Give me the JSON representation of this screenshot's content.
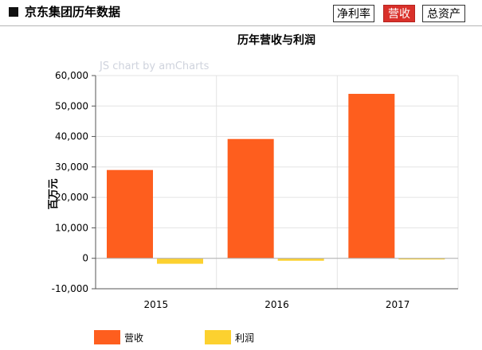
{
  "header": {
    "title": "京东集团历年数据",
    "tabs": [
      {
        "label": "净利率",
        "active": false
      },
      {
        "label": "营收",
        "active": true
      },
      {
        "label": "总资产",
        "active": false
      }
    ]
  },
  "watermark": "JS chart by amCharts",
  "chart_data": {
    "type": "bar",
    "title": "历年营收与利润",
    "ylabel": "百万元",
    "xlabel": "",
    "categories": [
      "2015",
      "2016",
      "2017"
    ],
    "series": [
      {
        "name": "营收",
        "color": "#fe5e1e",
        "values": [
          28996,
          39173,
          54000
        ]
      },
      {
        "name": "利润",
        "color": "#fcd12f",
        "values": [
          -1800,
          -800,
          -200
        ]
      }
    ],
    "ylim": [
      -10000,
      60000
    ],
    "yticks": [
      "60,000",
      "50,000",
      "40,000",
      "30,000",
      "20,000",
      "10,000",
      "0",
      "-10,000"
    ],
    "grid": true,
    "legend_position": "bottom-left"
  }
}
